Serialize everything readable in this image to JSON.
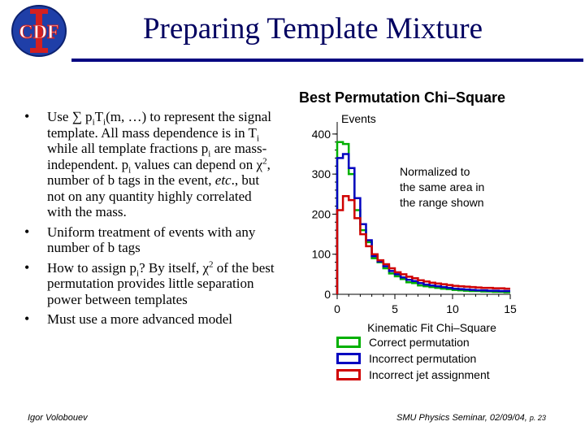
{
  "slide": {
    "title": "Preparing Template Mixture",
    "logo_text": "CDF",
    "footer_left": "Igor Volobouev",
    "footer_right": "SMU Physics Seminar, 02/09/04,",
    "page_label": "p. 23",
    "colors": {
      "title": "#000060",
      "rule": "#000080",
      "logo_blue": "#1f3fa8",
      "logo_red": "#d42020"
    }
  },
  "bullets": [
    {
      "parts": [
        "Use ∑ p",
        "i",
        "T",
        "i",
        "(m, …) to represent the signal template. All mass dependence is in T",
        "i",
        " while all template fractions p",
        "i",
        " are mass-independent. p",
        "i",
        " values can depend on χ",
        "2",
        ", number of b tags in the event, ",
        "etc",
        "., but not on any quantity highly correlated with the mass."
      ]
    },
    {
      "text": "Uniform treatment of events with any number of b tags"
    },
    {
      "parts": [
        "How to assign p",
        "i",
        "? By itself, χ",
        "2",
        " of the best permutation provides little separation power between templates"
      ]
    },
    {
      "text": "Must use a more advanced model"
    }
  ],
  "chart_data": {
    "type": "line",
    "title": "Best Permutation Chi–Square",
    "xlabel": "Kinematic Fit Chi–Square",
    "ylabel": "Events",
    "xlim": [
      0,
      15
    ],
    "ylim": [
      0,
      420
    ],
    "xticks": [
      "0",
      "5",
      "10",
      "15"
    ],
    "yticks": [
      "0",
      "100",
      "200",
      "300",
      "400"
    ],
    "annotation": [
      "Normalized to",
      "the same area in",
      "the range shown"
    ],
    "bin_width": 0.5,
    "series": [
      {
        "name": "Correct permutation",
        "color": "#00b000",
        "values": [
          380,
          375,
          300,
          210,
          160,
          130,
          90,
          80,
          65,
          52,
          45,
          38,
          30,
          28,
          22,
          20,
          18,
          16,
          14,
          13,
          11,
          10,
          9,
          8,
          8,
          7,
          7,
          6,
          6,
          5
        ]
      },
      {
        "name": "Incorrect permutation",
        "color": "#0000c0",
        "values": [
          340,
          350,
          315,
          240,
          175,
          135,
          95,
          82,
          70,
          58,
          50,
          42,
          36,
          33,
          28,
          24,
          22,
          20,
          18,
          16,
          14,
          13,
          12,
          11,
          10,
          10,
          9,
          9,
          8,
          8
        ]
      },
      {
        "name": "Incorrect jet assignment",
        "color": "#d00000",
        "values": [
          210,
          245,
          235,
          190,
          150,
          120,
          100,
          85,
          75,
          65,
          55,
          50,
          44,
          40,
          35,
          32,
          29,
          27,
          25,
          23,
          21,
          20,
          19,
          18,
          17,
          16,
          16,
          15,
          15,
          14
        ]
      }
    ]
  }
}
